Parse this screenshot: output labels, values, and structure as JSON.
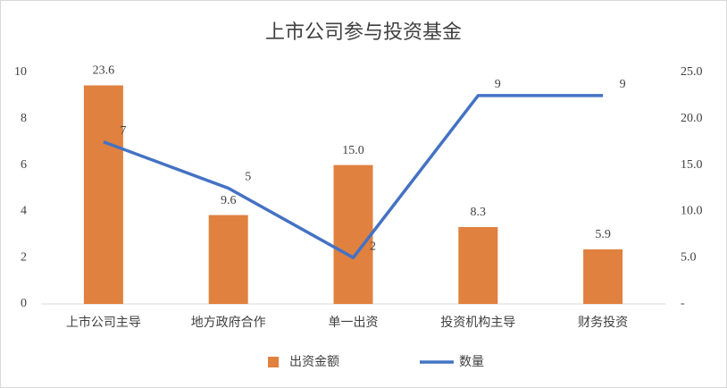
{
  "chart_data": {
    "type": "bar-line",
    "title": "上市公司参与投资基金",
    "categories": [
      "上市公司主导",
      "地方政府合作",
      "单一出资",
      "投资机构主导",
      "财务投资"
    ],
    "series": [
      {
        "name": "出资金额",
        "type": "bar",
        "axis": "y2",
        "color": "#E0813F",
        "values": [
          23.6,
          9.6,
          15.0,
          8.3,
          5.9
        ],
        "value_labels": [
          "23.6",
          "9.6",
          "15.0",
          "8.3",
          "5.9"
        ]
      },
      {
        "name": "数量",
        "type": "line",
        "color": "#4472C4",
        "values": [
          7,
          5,
          2,
          9,
          9
        ]
      }
    ],
    "ylim": [
      0,
      10
    ],
    "yticks": [
      0,
      2,
      4,
      6,
      8,
      10
    ],
    "y2lim": [
      0,
      25
    ],
    "y2ticks": [
      {
        "value": 0,
        "label": "-"
      },
      {
        "value": 5,
        "label": "5.0"
      },
      {
        "value": 10,
        "label": "10.0"
      },
      {
        "value": 15,
        "label": "15.0"
      },
      {
        "value": 20,
        "label": "20.0"
      },
      {
        "value": 25,
        "label": "25.0"
      }
    ],
    "grid": false,
    "legend": "bottom"
  }
}
